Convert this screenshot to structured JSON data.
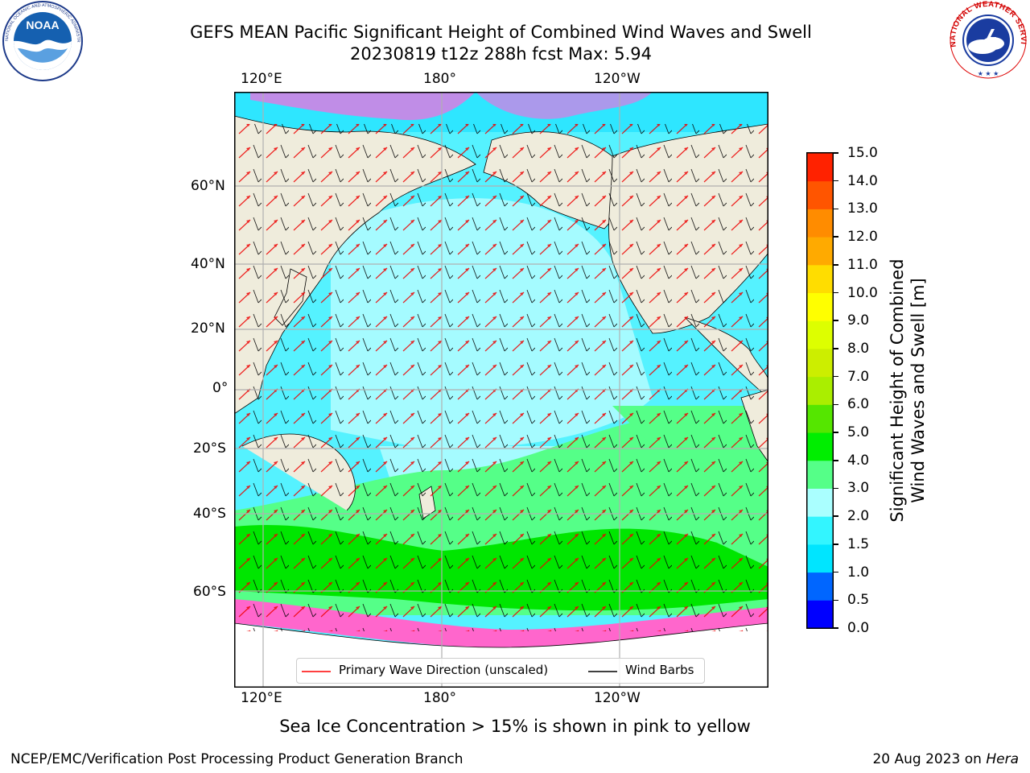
{
  "header": {
    "title_line1": "GEFS MEAN Pacific Significant Height of Combined Wind Waves and Swell",
    "title_line2": "20230819 t12z 288h fcst   Max: 5.94"
  },
  "logos": {
    "left": {
      "name": "noaa-logo",
      "text": "NOAA",
      "ring_text": "NATIONAL OCEANIC AND ATMOSPHERIC ADMINISTRATION · U.S. DEPARTMENT OF COMMERCE"
    },
    "right": {
      "name": "nws-logo",
      "ring_text": "NATIONAL WEATHER SERVICE"
    }
  },
  "map": {
    "lon_labels_top": [
      "120°E",
      "180°",
      "120°W"
    ],
    "lon_labels_bottom": [
      "120°E",
      "180°",
      "120°W"
    ],
    "lat_labels": [
      "60°N",
      "40°N",
      "20°N",
      "0°",
      "20°S",
      "40°S",
      "60°S"
    ],
    "colors": {
      "land": "#efecdc",
      "grid": "#b0b0b0",
      "arrow": "#ff0000",
      "barb": "#000000"
    },
    "legend": {
      "wave_direction": "Primary Wave Direction (unscaled)",
      "wind_barbs": "Wind Barbs"
    }
  },
  "colorbar": {
    "label_line1": "Significant Height of Combined",
    "label_line2": "Wind Waves and Swell [m]",
    "ticks": [
      "15.0",
      "14.0",
      "13.0",
      "12.0",
      "11.0",
      "10.0",
      "9.0",
      "8.0",
      "7.0",
      "6.0",
      "5.0",
      "4.0",
      "3.0",
      "2.0",
      "1.5",
      "1.0",
      "0.5",
      "0.0"
    ],
    "colors_bottom_to_top": [
      "#0000ff",
      "#0066ff",
      "#00e5ff",
      "#33f5ff",
      "#aaffff",
      "#55ff88",
      "#00ee00",
      "#55e600",
      "#aaee00",
      "#ccee00",
      "#ddff00",
      "#ffff00",
      "#ffdd00",
      "#ffaa00",
      "#ff8c00",
      "#ff5500",
      "#ff2200"
    ]
  },
  "note": "Sea Ice Concentration > 15% is shown in pink to yellow",
  "footer": {
    "left": "NCEP/EMC/Verification Post Processing Product Generation Branch",
    "right_date": "20 Aug 2023 on ",
    "right_machine": "Hera"
  }
}
